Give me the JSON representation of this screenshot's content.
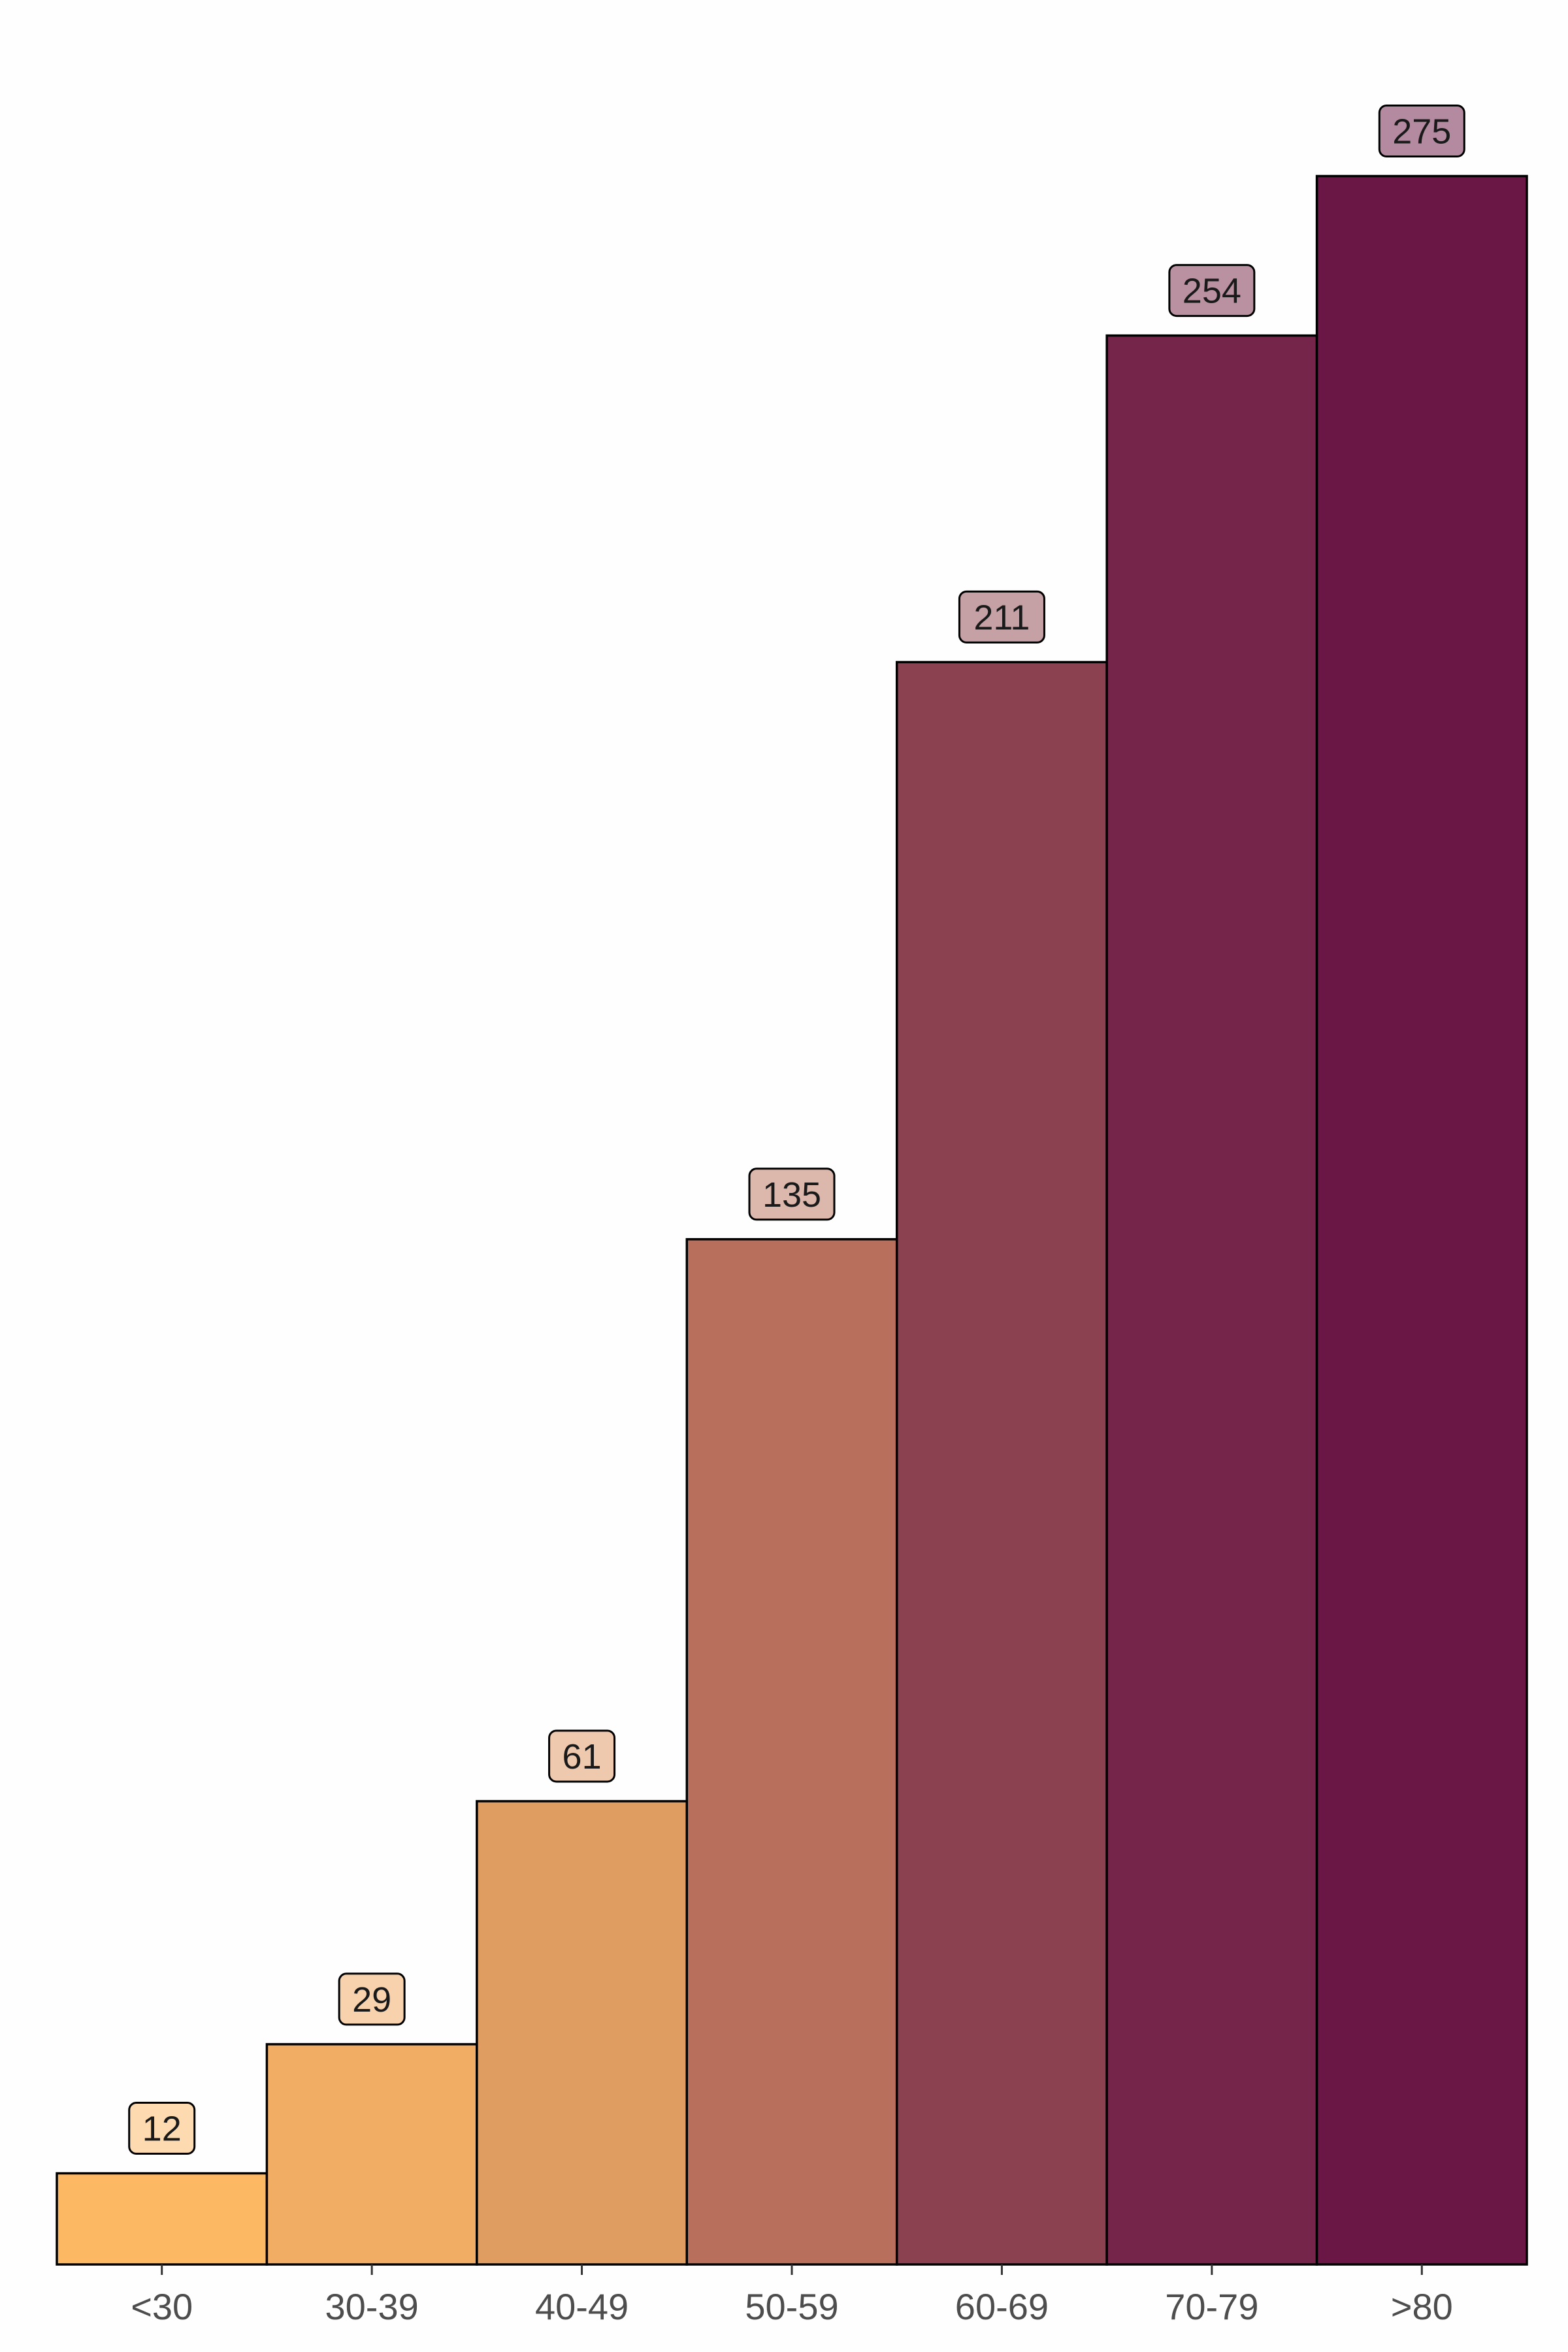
{
  "chart_data": {
    "type": "bar",
    "categories": [
      "<30",
      "30-39",
      "40-49",
      "50-59",
      "60-69",
      "70-79",
      ">80"
    ],
    "values": [
      12,
      29,
      61,
      135,
      211,
      254,
      275
    ],
    "data_labels": [
      "12",
      "29",
      "61",
      "135",
      "211",
      "254",
      "275"
    ],
    "title": "",
    "xlabel": "",
    "ylabel": "",
    "ylim": [
      0,
      287
    ],
    "grid": false,
    "legend": "none",
    "colors": {
      "bars": [
        "#fdb863",
        "#f2ad64",
        "#e09d61",
        "#b86f5b",
        "#8c4150",
        "#76254a",
        "#6a1745"
      ],
      "label_fills": [
        "#fddab0",
        "#f8d2ad",
        "#efc9ad",
        "#dcb7ac",
        "#c5a0a5",
        "#ba91a1",
        "#b38a9f"
      ],
      "outline": "#000000",
      "tick_text": "#4d4d4d",
      "background": "#fefefe"
    }
  }
}
